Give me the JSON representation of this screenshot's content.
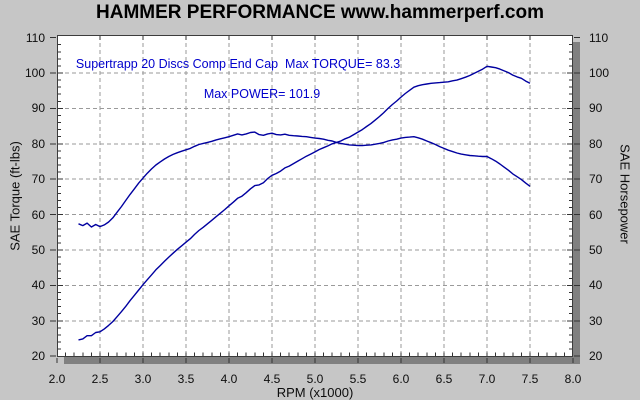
{
  "header": {
    "title": "HAMMER PERFORMANCE www.hammerperf.com"
  },
  "chart_data": {
    "type": "line",
    "title": "HAMMER PERFORMANCE www.hammerperf.com",
    "annotation_line1": "Supertrapp 20 Discs Comp End Cap  Max TORQUE= 83.3",
    "annotation_line2": "Max POWER= 101.9",
    "max_torque": 83.3,
    "max_power": 101.9,
    "xlabel": "RPM (x1000)",
    "ylabel_left": "SAE Torque (ft-lbs)",
    "ylabel_right": "SAE Horsepower",
    "xlim": [
      2.0,
      8.0
    ],
    "ylim": [
      20,
      110
    ],
    "grid": true,
    "legend_position": "none",
    "x_ticks": [
      "2.0",
      "2.5",
      "3.0",
      "3.5",
      "4.0",
      "4.5",
      "5.0",
      "5.5",
      "6.0",
      "6.5",
      "7.0",
      "7.5",
      "8.0"
    ],
    "y_ticks": [
      "110",
      "100",
      "90",
      "80",
      "70",
      "60",
      "50",
      "40",
      "30",
      "20"
    ],
    "x": [
      2.25,
      2.3,
      2.35,
      2.4,
      2.45,
      2.5,
      2.55,
      2.6,
      2.65,
      2.7,
      2.75,
      2.8,
      2.85,
      2.9,
      2.95,
      3.0,
      3.05,
      3.1,
      3.15,
      3.2,
      3.25,
      3.3,
      3.35,
      3.4,
      3.45,
      3.5,
      3.55,
      3.6,
      3.65,
      3.7,
      3.75,
      3.8,
      3.85,
      3.9,
      3.95,
      4.0,
      4.05,
      4.1,
      4.15,
      4.2,
      4.25,
      4.3,
      4.35,
      4.4,
      4.45,
      4.5,
      4.55,
      4.6,
      4.65,
      4.7,
      4.75,
      4.8,
      4.85,
      4.9,
      4.95,
      5.0,
      5.05,
      5.1,
      5.15,
      5.2,
      5.25,
      5.3,
      5.35,
      5.4,
      5.45,
      5.5,
      5.55,
      5.6,
      5.65,
      5.7,
      5.75,
      5.8,
      5.85,
      5.9,
      5.95,
      6.0,
      6.05,
      6.1,
      6.15,
      6.2,
      6.25,
      6.3,
      6.35,
      6.4,
      6.45,
      6.5,
      6.55,
      6.6,
      6.65,
      6.7,
      6.75,
      6.8,
      6.85,
      6.9,
      6.95,
      7.0,
      7.05,
      7.1,
      7.15,
      7.2,
      7.25,
      7.3,
      7.35,
      7.4,
      7.45,
      7.5
    ],
    "series": [
      {
        "name": "SAE Torque (ft-lbs)",
        "axis": "left",
        "values": [
          57.4,
          56.9,
          57.6,
          56.5,
          57.2,
          56.6,
          57.1,
          57.9,
          59.1,
          60.7,
          62.3,
          64.0,
          65.7,
          67.3,
          68.9,
          70.3,
          71.7,
          72.9,
          74.0,
          74.9,
          75.7,
          76.4,
          77.0,
          77.5,
          77.9,
          78.3,
          78.7,
          79.3,
          79.8,
          80.1,
          80.4,
          80.7,
          81.1,
          81.4,
          81.7,
          82.0,
          82.4,
          82.8,
          82.5,
          82.8,
          83.2,
          83.3,
          82.6,
          82.4,
          82.8,
          83.0,
          82.6,
          82.5,
          82.7,
          82.4,
          82.3,
          82.2,
          82.1,
          82.0,
          81.8,
          81.6,
          81.5,
          81.3,
          81.0,
          80.8,
          80.4,
          80.1,
          79.9,
          79.7,
          79.6,
          79.5,
          79.5,
          79.6,
          79.7,
          79.9,
          80.1,
          80.4,
          80.8,
          81.1,
          81.3,
          81.6,
          81.8,
          81.9,
          82.0,
          81.7,
          81.3,
          80.8,
          80.3,
          79.8,
          79.2,
          78.7,
          78.2,
          77.8,
          77.4,
          77.1,
          76.9,
          76.7,
          76.6,
          76.5,
          76.4,
          76.4,
          75.8,
          75.1,
          74.3,
          73.4,
          72.5,
          71.5,
          70.7,
          69.9,
          68.9,
          68.0
        ]
      },
      {
        "name": "SAE Horsepower",
        "axis": "right",
        "values": [
          24.6,
          24.9,
          25.8,
          25.8,
          26.7,
          26.9,
          27.7,
          28.7,
          29.8,
          31.2,
          32.6,
          34.1,
          35.7,
          37.2,
          38.7,
          40.2,
          41.6,
          43.0,
          44.4,
          45.6,
          46.8,
          48.0,
          49.1,
          50.2,
          51.2,
          52.2,
          53.2,
          54.4,
          55.5,
          56.4,
          57.4,
          58.4,
          59.4,
          60.4,
          61.4,
          62.5,
          63.5,
          64.6,
          65.2,
          66.2,
          67.3,
          68.2,
          68.4,
          69.0,
          70.2,
          71.1,
          71.6,
          72.3,
          73.2,
          73.7,
          74.4,
          75.1,
          75.8,
          76.5,
          77.1,
          77.7,
          78.4,
          78.9,
          79.4,
          80.0,
          80.4,
          80.8,
          81.4,
          81.9,
          82.6,
          83.3,
          84.0,
          84.9,
          85.7,
          86.7,
          87.7,
          88.8,
          90.0,
          91.1,
          92.1,
          93.2,
          94.2,
          95.1,
          96.0,
          96.4,
          96.7,
          96.9,
          97.1,
          97.2,
          97.3,
          97.4,
          97.5,
          97.8,
          98.0,
          98.4,
          98.8,
          99.3,
          99.9,
          100.5,
          101.1,
          101.9,
          101.7,
          101.5,
          101.1,
          100.6,
          100.1,
          99.4,
          98.9,
          98.5,
          97.7,
          97.1
        ]
      }
    ],
    "colors": {
      "curve": "#0000a0",
      "annotation": "#0000cc",
      "background": "#c6c6c6",
      "plot_background": "#ffffff",
      "grid": "#9a9a9a",
      "shadow": "#808080",
      "tick": "#333333",
      "text": "#0d0d0d"
    }
  }
}
